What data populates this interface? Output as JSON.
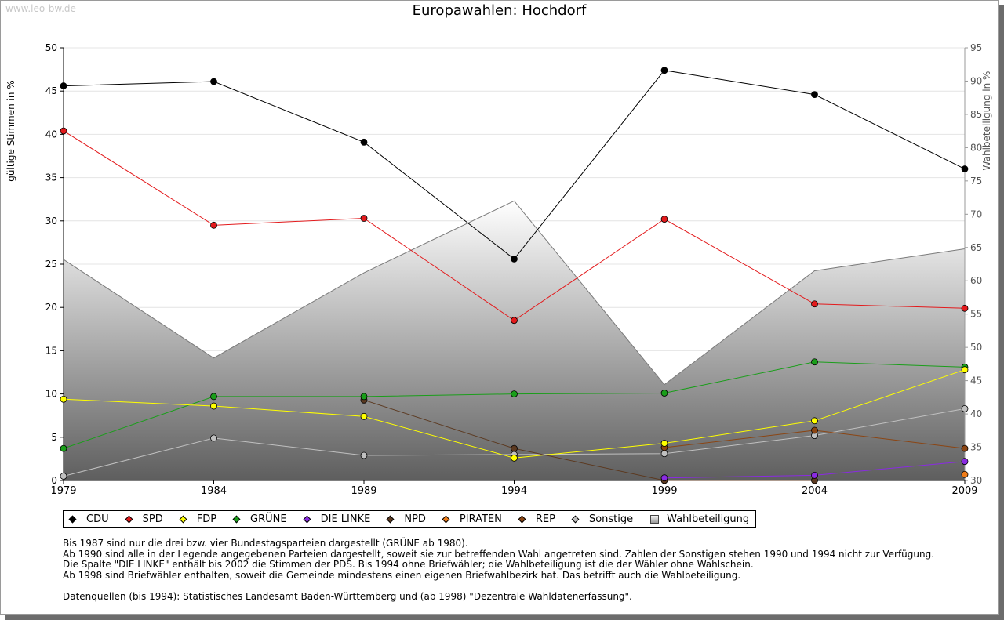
{
  "watermark": "www.leo-bw.de",
  "chart_data": {
    "type": "line",
    "title": "Europawahlen: Hochdorf",
    "ylabel": "gültige Stimmen in %",
    "y2label": "Wahlbeteiligung in %",
    "ylim": [
      0,
      50
    ],
    "y2lim": [
      30,
      95
    ],
    "yticks": [
      0,
      5,
      10,
      15,
      20,
      25,
      30,
      35,
      40,
      45,
      50
    ],
    "y2ticks": [
      30,
      35,
      40,
      45,
      50,
      55,
      60,
      65,
      70,
      75,
      80,
      85,
      90,
      95
    ],
    "x": [
      1979,
      1984,
      1989,
      1994,
      1999,
      2004,
      2009
    ],
    "grid": true,
    "legend_position": "bottom",
    "series": [
      {
        "name": "CDU",
        "color": "#000000",
        "values": [
          45.6,
          46.1,
          39.1,
          25.6,
          47.4,
          44.6,
          36.0
        ]
      },
      {
        "name": "SPD",
        "color": "#e31a1c",
        "values": [
          40.4,
          29.5,
          30.3,
          18.5,
          30.2,
          20.4,
          19.9
        ]
      },
      {
        "name": "FDP",
        "color": "#ffff00",
        "values": [
          9.4,
          8.6,
          7.4,
          2.6,
          4.3,
          6.9,
          12.8
        ]
      },
      {
        "name": "GRÜNE",
        "color": "#1a9e1a",
        "values": [
          3.7,
          9.7,
          9.7,
          10.0,
          10.1,
          13.7,
          13.1
        ]
      },
      {
        "name": "DIE LINKE",
        "color": "#8a2be2",
        "values": [
          null,
          null,
          null,
          null,
          0.3,
          0.6,
          2.2
        ]
      },
      {
        "name": "NPD",
        "color": "#5c3a21",
        "values": [
          null,
          null,
          9.3,
          3.7,
          0.0,
          0.0,
          null
        ]
      },
      {
        "name": "PIRATEN",
        "color": "#f07d1a",
        "values": [
          null,
          null,
          null,
          null,
          null,
          null,
          0.7
        ]
      },
      {
        "name": "REP",
        "color": "#8b4513",
        "values": [
          null,
          null,
          null,
          null,
          3.8,
          5.8,
          3.7
        ]
      },
      {
        "name": "Sonstige",
        "color": "#c0c0c0",
        "values": [
          0.5,
          4.9,
          2.9,
          3.0,
          3.1,
          5.2,
          8.3
        ]
      }
    ],
    "turnout": {
      "name": "Wahlbeteiligung",
      "values": [
        63.2,
        48.4,
        61.2,
        72.0,
        44.4,
        61.5,
        64.8
      ]
    }
  },
  "notes": {
    "line1": "Bis 1987 sind nur die drei bzw. vier Bundestagsparteien dargestellt (GRÜNE ab 1980).",
    "line2": "Ab 1990 sind alle in der Legende angegebenen Parteien dargestellt, soweit sie zur betreffenden Wahl angetreten sind. Zahlen der Sonstigen stehen 1990 und 1994 nicht zur Verfügung.",
    "line3": "Die Spalte \"DIE LINKE\" enthält bis 2002 die Stimmen der PDS. Bis 1994 ohne Briefwähler; die Wahlbeteiligung ist die der Wähler ohne Wahlschein.",
    "line4": "Ab 1998 sind Briefwähler enthalten, soweit die Gemeinde mindestens einen eigenen Briefwahlbezirk hat. Das betrifft auch die Wahlbeteiligung.",
    "line5": "Datenquellen (bis 1994): Statistisches Landesamt Baden-Württemberg und (ab 1998) \"Dezentrale Wahldatenerfassung\"."
  }
}
